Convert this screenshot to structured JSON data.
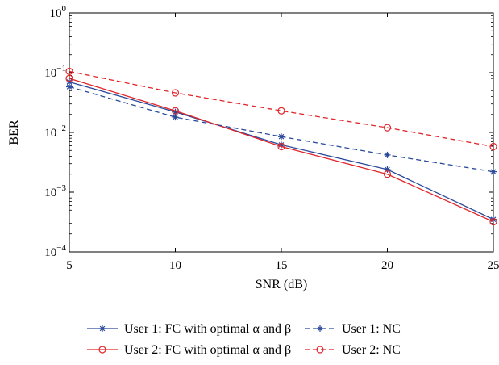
{
  "chart_data": {
    "type": "line",
    "xlabel": "SNR (dB)",
    "ylabel": "BER",
    "xlim": [
      5,
      25
    ],
    "ylim": [
      0.0001,
      1
    ],
    "yscale": "log",
    "grid": false,
    "legend_position": "bottom",
    "x_ticks": [
      "5",
      "10",
      "15",
      "20",
      "25"
    ],
    "y_ticks": [
      {
        "base": "10",
        "exp": "0"
      },
      {
        "base": "10",
        "exp": "−1"
      },
      {
        "base": "10",
        "exp": "−2"
      },
      {
        "base": "10",
        "exp": "−3"
      },
      {
        "base": "10",
        "exp": "−4"
      }
    ],
    "x": [
      5,
      10,
      15,
      20,
      25
    ],
    "series": [
      {
        "name": "User 1: FC with optimal α and β",
        "values": [
          0.07,
          0.022,
          0.0062,
          0.0024,
          0.00035
        ],
        "color": "#2b4a9c",
        "dash": "solid",
        "marker": "star"
      },
      {
        "name": "User 2: FC with optimal α and β",
        "values": [
          0.08,
          0.023,
          0.0058,
          0.002,
          0.00032
        ],
        "color": "#e0262b",
        "dash": "solid",
        "marker": "circle"
      },
      {
        "name": "User 1: NC",
        "values": [
          0.058,
          0.018,
          0.0085,
          0.0042,
          0.0022
        ],
        "color": "#2b4a9c",
        "dash": "dashed",
        "marker": "star"
      },
      {
        "name": "User 2: NC",
        "values": [
          0.105,
          0.046,
          0.023,
          0.012,
          0.0058
        ],
        "color": "#e0262b",
        "dash": "dashed",
        "marker": "circle"
      }
    ]
  }
}
